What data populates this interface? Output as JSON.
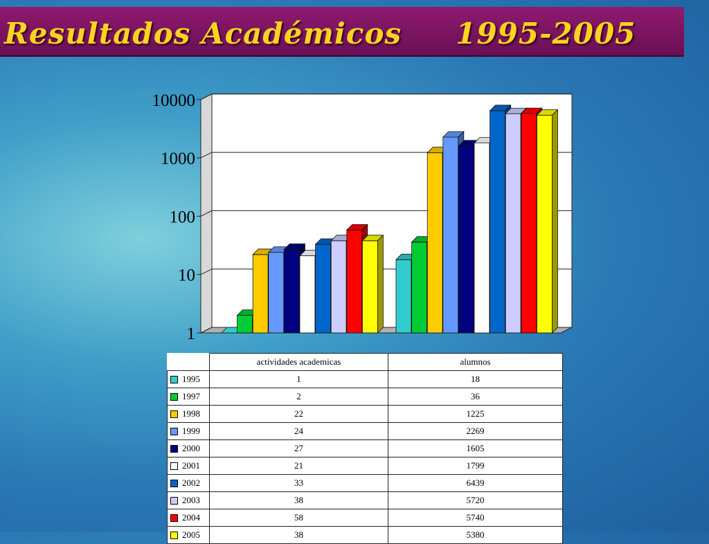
{
  "title": "Resultados Académicos     1995-2005",
  "chart_data": {
    "type": "bar",
    "log_scale": true,
    "ylim": [
      1,
      10000
    ],
    "y_ticks": [
      "1",
      "10",
      "100",
      "1000",
      "10000"
    ],
    "categories": [
      "actividades academicas",
      "alumnos"
    ],
    "series": [
      {
        "name": "1995",
        "values": [
          1,
          18
        ],
        "color": "#33cccc"
      },
      {
        "name": "1997",
        "values": [
          2,
          36
        ],
        "color": "#00cc33"
      },
      {
        "name": "1998",
        "values": [
          22,
          1225
        ],
        "color": "#ffcc00"
      },
      {
        "name": "1999",
        "values": [
          24,
          2269
        ],
        "color": "#6699ff"
      },
      {
        "name": "2000",
        "values": [
          27,
          1605
        ],
        "color": "#000080"
      },
      {
        "name": "2001",
        "values": [
          21,
          1799
        ],
        "color": "#ffffff"
      },
      {
        "name": "2002",
        "values": [
          33,
          6439
        ],
        "color": "#0066cc"
      },
      {
        "name": "2003",
        "values": [
          38,
          5720
        ],
        "color": "#ccccff"
      },
      {
        "name": "2004",
        "values": [
          58,
          5740
        ],
        "color": "#ff0000"
      },
      {
        "name": "2005",
        "values": [
          38,
          5380
        ],
        "color": "#ffff00"
      }
    ],
    "grid": true,
    "legend": "data-table"
  }
}
